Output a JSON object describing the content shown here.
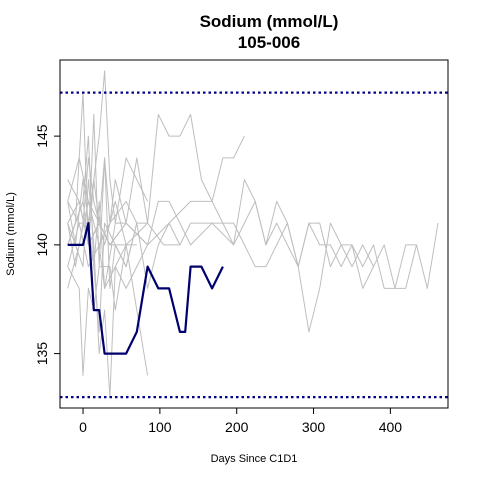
{
  "chart_data": {
    "type": "line",
    "title": "Sodium (mmol/L)",
    "subtitle": "105-006",
    "xlabel": "Days Since C1D1",
    "ylabel": "Sodium (mmol/L)",
    "xlim": [
      -30,
      475
    ],
    "ylim": [
      132.5,
      148.5
    ],
    "x_ticks": [
      0,
      100,
      200,
      300,
      400
    ],
    "y_ticks": [
      135,
      140,
      145
    ],
    "reference_lines": [
      {
        "y": 147,
        "color": "#00008b",
        "style": "dotted"
      },
      {
        "y": 133,
        "color": "#00008b",
        "style": "dotted"
      }
    ],
    "highlight_color": "#00006e",
    "background_color": "#bebebe",
    "series": [
      {
        "highlight": true,
        "points": [
          [
            -20,
            140
          ],
          [
            0,
            140
          ],
          [
            7,
            141
          ],
          [
            14,
            137
          ],
          [
            21,
            137
          ],
          [
            28,
            135
          ],
          [
            42,
            135
          ],
          [
            56,
            135
          ],
          [
            70,
            136
          ],
          [
            84,
            139
          ],
          [
            98,
            138
          ],
          [
            112,
            138
          ],
          [
            126,
            136
          ],
          [
            133,
            136
          ],
          [
            140,
            139
          ],
          [
            154,
            139
          ],
          [
            168,
            138
          ],
          [
            182,
            139
          ]
        ]
      },
      {
        "points": [
          [
            -20,
            142
          ],
          [
            -5,
            144
          ],
          [
            7,
            142
          ],
          [
            21,
            141
          ],
          [
            35,
            140
          ],
          [
            56,
            140
          ],
          [
            84,
            141
          ],
          [
            105,
            140
          ],
          [
            126,
            140
          ],
          [
            140,
            141
          ],
          [
            168,
            141
          ],
          [
            196,
            140
          ],
          [
            210,
            141
          ],
          [
            224,
            142
          ],
          [
            238,
            140
          ],
          [
            252,
            141
          ],
          [
            266,
            140
          ],
          [
            280,
            139
          ],
          [
            294,
            141
          ],
          [
            308,
            140
          ],
          [
            322,
            140
          ],
          [
            336,
            139
          ],
          [
            350,
            140
          ],
          [
            364,
            139
          ],
          [
            378,
            140
          ],
          [
            392,
            138
          ],
          [
            406,
            138
          ],
          [
            420,
            140
          ],
          [
            434,
            140
          ],
          [
            448,
            138
          ],
          [
            462,
            141
          ]
        ]
      },
      {
        "points": [
          [
            -20,
            143
          ],
          [
            -5,
            142
          ],
          [
            7,
            140
          ],
          [
            21,
            141
          ],
          [
            35,
            140
          ],
          [
            56,
            141
          ],
          [
            84,
            140
          ],
          [
            112,
            141
          ],
          [
            140,
            142
          ],
          [
            168,
            142
          ],
          [
            196,
            140
          ],
          [
            210,
            143
          ],
          [
            224,
            142
          ],
          [
            238,
            140
          ],
          [
            252,
            142
          ],
          [
            266,
            141
          ],
          [
            280,
            139
          ],
          [
            294,
            141
          ],
          [
            308,
            141
          ],
          [
            322,
            139
          ],
          [
            336,
            140
          ],
          [
            350,
            139
          ],
          [
            364,
            140
          ],
          [
            378,
            139
          ],
          [
            392,
            140
          ],
          [
            406,
            138
          ],
          [
            420,
            138
          ],
          [
            434,
            140
          ]
        ]
      },
      {
        "points": [
          [
            -20,
            141
          ],
          [
            -5,
            142
          ],
          [
            7,
            140
          ],
          [
            21,
            141
          ],
          [
            35,
            140
          ],
          [
            56,
            141
          ],
          [
            84,
            140
          ],
          [
            98,
            142
          ],
          [
            112,
            142
          ],
          [
            140,
            140
          ],
          [
            168,
            141
          ],
          [
            196,
            141
          ],
          [
            224,
            139
          ],
          [
            238,
            139
          ],
          [
            252,
            140
          ],
          [
            266,
            141
          ],
          [
            280,
            139
          ],
          [
            294,
            136
          ],
          [
            308,
            138
          ],
          [
            322,
            141
          ],
          [
            336,
            140
          ],
          [
            350,
            140
          ],
          [
            364,
            138
          ],
          [
            378,
            139
          ]
        ]
      },
      {
        "points": [
          [
            -20,
            138
          ],
          [
            -5,
            140
          ],
          [
            7,
            142
          ],
          [
            21,
            140
          ],
          [
            35,
            141
          ],
          [
            56,
            142
          ],
          [
            70,
            141
          ],
          [
            84,
            141
          ],
          [
            98,
            146
          ],
          [
            112,
            145
          ],
          [
            126,
            145
          ],
          [
            140,
            146
          ],
          [
            154,
            143
          ],
          [
            168,
            142
          ],
          [
            182,
            144
          ],
          [
            196,
            144
          ],
          [
            210,
            145
          ]
        ]
      },
      {
        "points": [
          [
            -20,
            142
          ],
          [
            -5,
            141
          ],
          [
            7,
            141
          ],
          [
            21,
            145
          ],
          [
            28,
            148
          ],
          [
            35,
            143
          ],
          [
            42,
            141
          ],
          [
            56,
            144
          ],
          [
            70,
            143
          ],
          [
            84,
            142
          ]
        ]
      },
      {
        "points": [
          [
            -20,
            140
          ],
          [
            -10,
            141
          ],
          [
            0,
            147
          ],
          [
            7,
            140
          ],
          [
            14,
            146
          ],
          [
            21,
            139
          ],
          [
            28,
            144
          ],
          [
            35,
            138
          ],
          [
            42,
            140
          ],
          [
            56,
            139
          ],
          [
            70,
            141
          ],
          [
            84,
            138
          ],
          [
            98,
            140
          ],
          [
            112,
            141
          ],
          [
            126,
            140
          ]
        ]
      },
      {
        "points": [
          [
            -20,
            139
          ],
          [
            -5,
            138
          ],
          [
            0,
            134
          ],
          [
            7,
            138
          ],
          [
            14,
            137
          ],
          [
            21,
            139
          ],
          [
            35,
            139
          ],
          [
            42,
            137
          ],
          [
            56,
            140
          ],
          [
            70,
            137
          ],
          [
            84,
            134
          ]
        ]
      },
      {
        "points": [
          [
            -20,
            141
          ],
          [
            -10,
            140
          ],
          [
            0,
            139
          ],
          [
            7,
            143
          ],
          [
            14,
            140
          ],
          [
            21,
            135
          ],
          [
            28,
            137
          ],
          [
            35,
            133
          ],
          [
            42,
            139
          ],
          [
            56,
            140
          ],
          [
            70,
            140
          ]
        ]
      },
      {
        "points": [
          [
            -20,
            140
          ],
          [
            -10,
            141
          ],
          [
            0,
            142
          ],
          [
            7,
            145
          ],
          [
            14,
            139
          ],
          [
            21,
            136
          ],
          [
            28,
            141
          ],
          [
            42,
            140
          ],
          [
            56,
            139
          ],
          [
            70,
            141
          ]
        ]
      },
      {
        "points": [
          [
            -20,
            142
          ],
          [
            -10,
            140
          ],
          [
            0,
            143
          ],
          [
            7,
            141
          ],
          [
            14,
            139
          ],
          [
            21,
            142
          ],
          [
            28,
            138
          ],
          [
            42,
            141
          ],
          [
            56,
            141
          ],
          [
            70,
            144
          ],
          [
            84,
            141
          ]
        ]
      },
      {
        "points": [
          [
            -20,
            141
          ],
          [
            -10,
            139
          ],
          [
            0,
            141
          ],
          [
            7,
            144
          ],
          [
            14,
            142
          ],
          [
            28,
            140
          ],
          [
            42,
            142
          ],
          [
            56,
            140
          ]
        ]
      },
      {
        "points": [
          [
            -20,
            139
          ],
          [
            -5,
            141
          ],
          [
            7,
            139
          ],
          [
            21,
            140
          ],
          [
            28,
            138
          ],
          [
            42,
            139
          ],
          [
            56,
            138
          ],
          [
            70,
            139
          ],
          [
            84,
            140
          ]
        ]
      },
      {
        "points": [
          [
            -20,
            140
          ],
          [
            0,
            142
          ],
          [
            7,
            140
          ],
          [
            14,
            143
          ],
          [
            21,
            141
          ],
          [
            28,
            144
          ],
          [
            35,
            141
          ],
          [
            42,
            143
          ],
          [
            56,
            141
          ]
        ]
      }
    ]
  }
}
